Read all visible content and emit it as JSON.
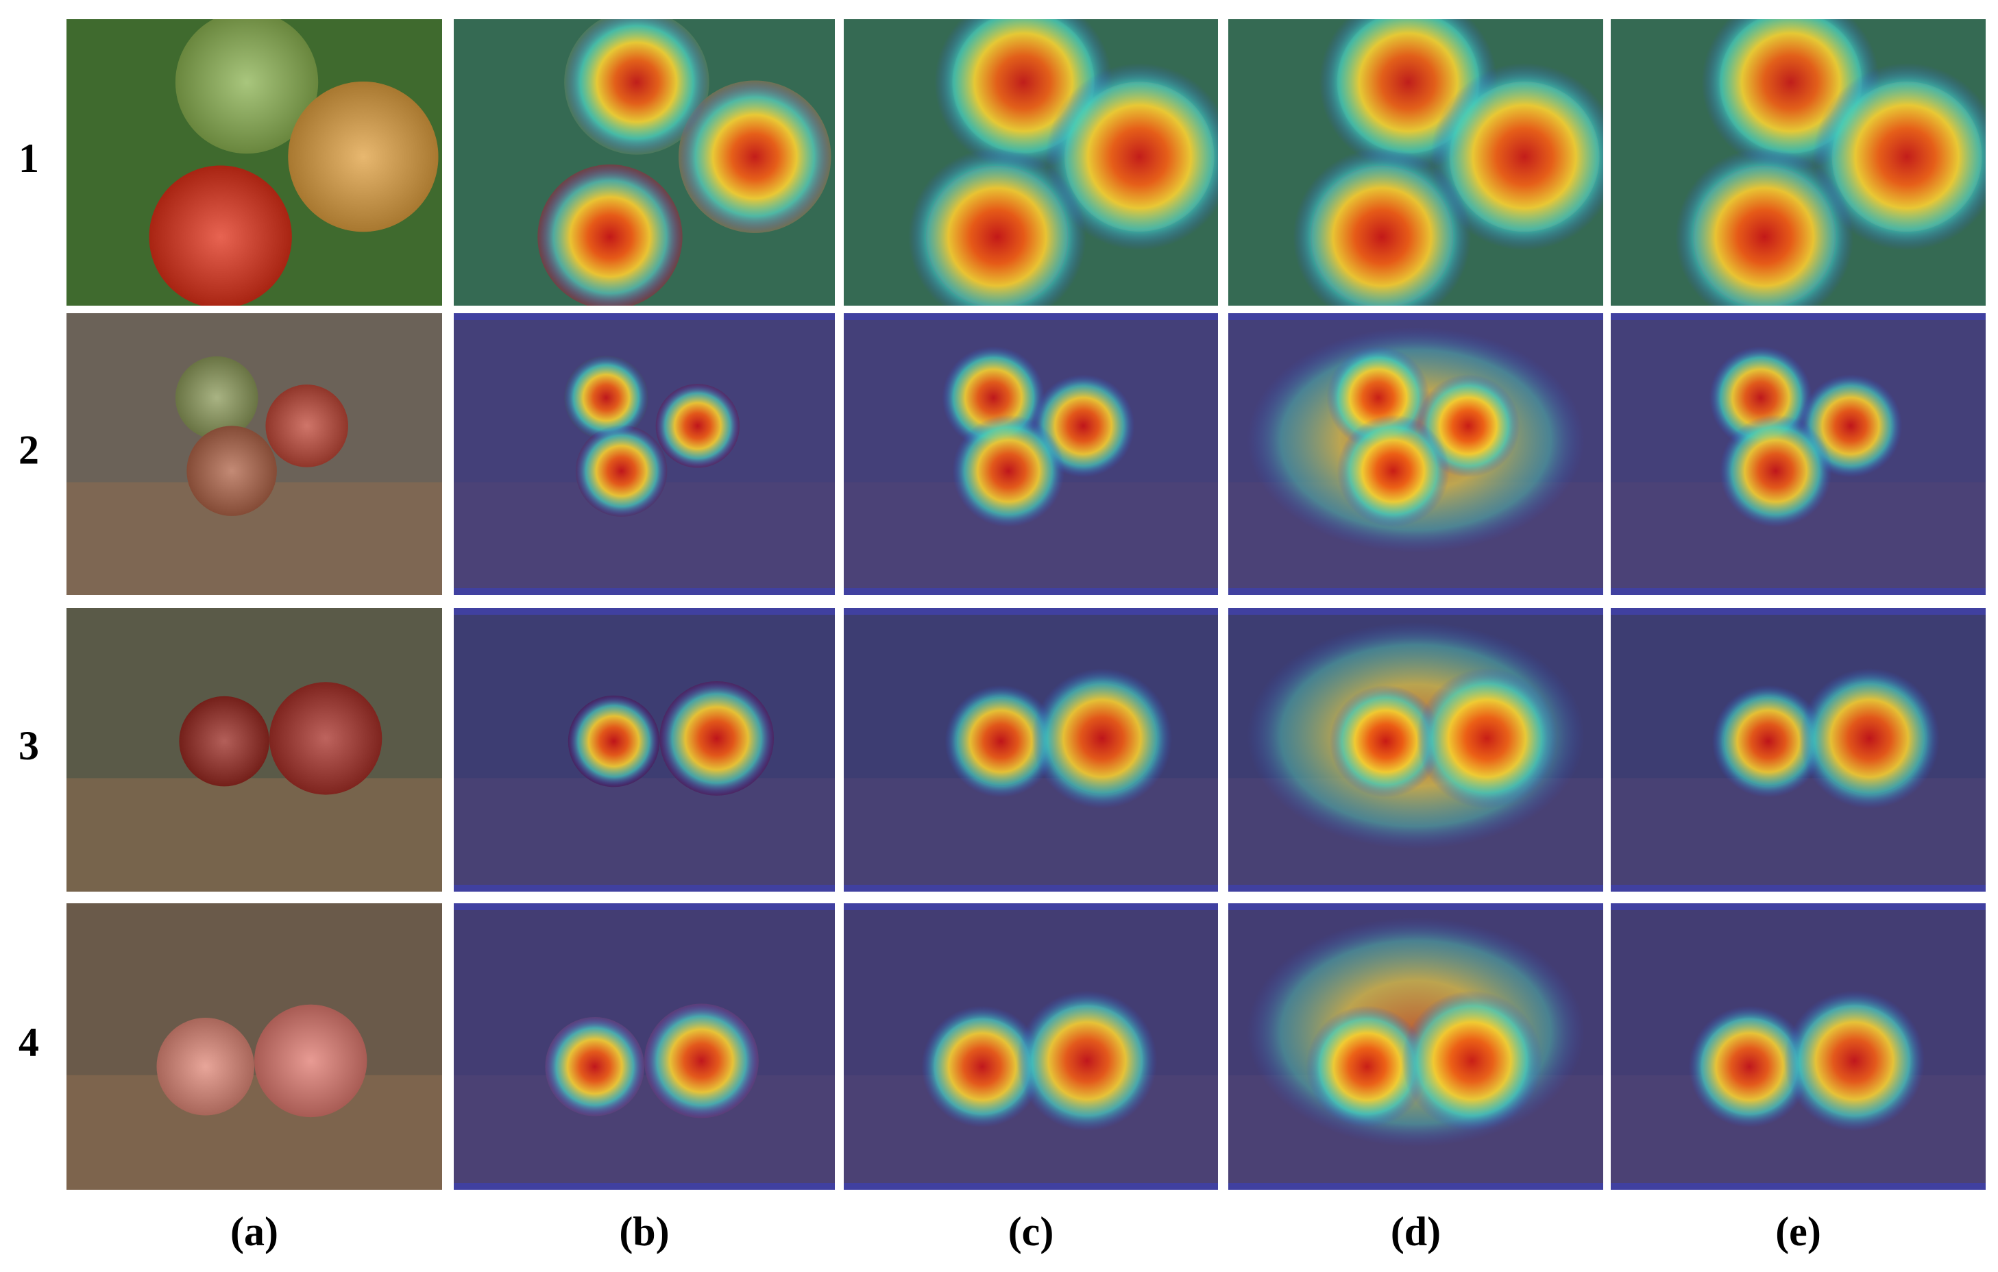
{
  "figure": {
    "row_labels": [
      "1",
      "2",
      "3",
      "4"
    ],
    "column_labels": [
      "(a)",
      "(b)",
      "(c)",
      "(d)",
      "(e)"
    ]
  }
}
